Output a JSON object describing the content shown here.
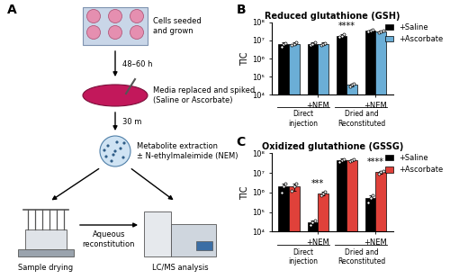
{
  "panel_labels": [
    "A",
    "B",
    "C"
  ],
  "diagram": {
    "steps": [
      "Cells seeded\nand grown",
      "Media replaced and spiked\n(Saline or Ascorbate)",
      "Metabolite extraction\n± N-ethylmaleimide (NEM)"
    ],
    "intervals": [
      "48–60 h",
      "30 m"
    ],
    "drying": "Sample drying",
    "reconstitution": "Aqueous\nreconstitution",
    "analysis": "LC/MS analysis"
  },
  "chart_data": [
    {
      "type": "bar",
      "log": "y",
      "title": "Reduced glutathione (GSH)",
      "y_label": "TIC",
      "categories": [
        null,
        "+NEM",
        null,
        "+NEM"
      ],
      "groups": [
        "Direct\ninjection",
        "Dried and\nReconstituted"
      ],
      "ylim": [
        10000,
        100000000
      ],
      "yticks": [
        {
          "value": 10000,
          "label": "10⁴"
        },
        {
          "value": 100000,
          "label": "10⁵"
        },
        {
          "value": 1000000,
          "label": "10⁶"
        },
        {
          "value": 10000000,
          "label": "10⁷"
        },
        {
          "value": 100000000,
          "label": "10⁸"
        }
      ],
      "legend": "upper right",
      "series": [
        {
          "name": "+Saline",
          "color": "#000000",
          "values": [
            6000000.0,
            6500000.0,
            18000000.0,
            35000000.0
          ],
          "errors": [
            1500000.0,
            1000000.0,
            3000000.0,
            4000000.0
          ],
          "replicates": [
            [
              4500000.0,
              6000000.0,
              7000000.0
            ],
            [
              5500000.0,
              6500000.0,
              7500000.0
            ],
            [
              15000000.0,
              18000000.0,
              21000000.0
            ],
            [
              30000000.0,
              35000000.0,
              40000000.0
            ]
          ]
        },
        {
          "name": "+Ascorbate",
          "color": "#6baed6",
          "values": [
            6500000.0,
            6500000.0,
            35000.0,
            32000000.0
          ],
          "errors": [
            1000000.0,
            1000000.0,
            5000.0,
            4000000.0
          ],
          "replicates": [
            [
              5500000.0,
              6500000.0,
              7500000.0
            ],
            [
              5500000.0,
              6500000.0,
              7000000.0
            ],
            [
              30000.0,
              35000.0,
              40000.0
            ],
            [
              28000000.0,
              32000000.0,
              36000000.0
            ]
          ]
        }
      ],
      "annotations": [
        {
          "text": "****",
          "category": 2
        }
      ]
    },
    {
      "type": "bar",
      "log": "y",
      "title": "Oxidized glutathione (GSSG)",
      "y_label": "TIC",
      "categories": [
        null,
        "+NEM",
        null,
        "+NEM"
      ],
      "groups": [
        "Direct\ninjection",
        "Dried and\nReconstituted"
      ],
      "ylim": [
        10000,
        100000000
      ],
      "yticks": [
        {
          "value": 10000,
          "label": "10⁴"
        },
        {
          "value": 100000,
          "label": "10⁵"
        },
        {
          "value": 1000000,
          "label": "10⁶"
        },
        {
          "value": 10000000,
          "label": "10⁷"
        },
        {
          "value": 100000000,
          "label": "10⁸"
        }
      ],
      "legend": "upper right",
      "series": [
        {
          "name": "+Saline",
          "color": "#000000",
          "values": [
            2000000.0,
            30000.0,
            45000000.0,
            500000.0
          ],
          "errors": [
            1000000.0,
            8000.0,
            8000000.0,
            200000.0
          ],
          "replicates": [
            [
              1000000.0,
              2000000.0,
              3000000.0
            ],
            [
              22000.0,
              30000.0,
              38000.0
            ],
            [
              38000000.0,
              45000000.0,
              52000000.0
            ],
            [
              300000.0,
              500000.0,
              700000.0
            ]
          ]
        },
        {
          "name": "+Ascorbate",
          "color": "#e0413a",
          "values": [
            2000000.0,
            900000.0,
            45000000.0,
            11000000.0
          ],
          "errors": [
            800000.0,
            150000.0,
            6000000.0,
            2000000.0
          ],
          "replicates": [
            [
              1200000.0,
              2000000.0,
              2800000.0
            ],
            [
              750000.0,
              900000.0,
              1050000.0
            ],
            [
              40000000.0,
              45000000.0,
              50000000.0
            ],
            [
              9000000.0,
              11000000.0,
              13000000.0
            ]
          ]
        }
      ],
      "annotations": [
        {
          "text": "***",
          "category": 1
        },
        {
          "text": "****",
          "category": 3
        }
      ]
    }
  ]
}
